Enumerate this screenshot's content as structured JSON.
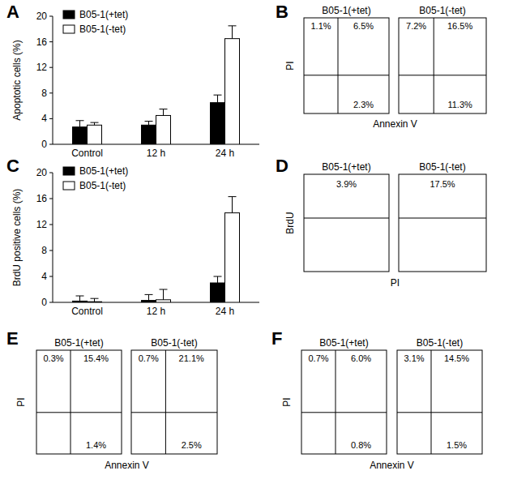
{
  "chart_data": [
    {
      "type": "bar",
      "title": "A",
      "y_label": "Apoptotic cells (%)",
      "categories": [
        "Control",
        "12 h",
        "24 h"
      ],
      "series": [
        {
          "name": "B05-1(+tet)",
          "color": "#000000",
          "values": [
            2.7,
            3.0,
            6.5
          ],
          "errors": [
            1.0,
            0.6,
            1.2
          ]
        },
        {
          "name": "B05-1(-tet)",
          "color": "#ffffff",
          "values": [
            3.0,
            4.5,
            16.5
          ],
          "errors": [
            0.4,
            1.0,
            2.0
          ]
        }
      ],
      "ylim": [
        0,
        20
      ],
      "yticks": [
        0,
        4,
        8,
        12,
        16,
        20
      ],
      "legend": "top-left"
    },
    {
      "type": "quadrant",
      "title": "B",
      "x_label": "Annexin V",
      "y_label": "PI",
      "data_labels": true,
      "plots": [
        {
          "name": "B05-1(+tet)",
          "values": [
            1.1,
            6.5,
            2.3
          ],
          "value_labels": [
            "1.1%",
            "6.5%",
            "2.3%"
          ]
        },
        {
          "name": "B05-1(-tet)",
          "values": [
            7.2,
            16.5,
            11.3
          ],
          "value_labels": [
            "7.2%",
            "16.5%",
            "11.3%"
          ]
        }
      ]
    },
    {
      "type": "bar",
      "title": "C",
      "y_label": "BrdU positive cells (%)",
      "categories": [
        "Control",
        "12 h",
        "24 h"
      ],
      "series": [
        {
          "name": "B05-1(+tet)",
          "color": "#000000",
          "values": [
            0.2,
            0.3,
            3.0
          ],
          "errors": [
            0.8,
            0.9,
            1.0
          ]
        },
        {
          "name": "B05-1(-tet)",
          "color": "#ffffff",
          "values": [
            0.1,
            0.4,
            13.8
          ],
          "errors": [
            0.5,
            1.6,
            2.5
          ]
        }
      ],
      "ylim": [
        0,
        20
      ],
      "yticks": [
        0,
        4,
        8,
        12,
        16,
        20
      ],
      "legend": "top-left"
    },
    {
      "type": "gate",
      "title": "D",
      "x_label": "PI",
      "y_label": "BrdU",
      "data_labels": true,
      "plots": [
        {
          "name": "B05-1(+tet)",
          "values": [
            3.9
          ],
          "value_labels": [
            "3.9%"
          ]
        },
        {
          "name": "B05-1(-tet)",
          "values": [
            17.5
          ],
          "value_labels": [
            "17.5%"
          ]
        }
      ]
    },
    {
      "type": "quadrant",
      "title": "E",
      "x_label": "Annexin V",
      "y_label": "PI",
      "data_labels": true,
      "plots": [
        {
          "name": "B05-1(+tet)",
          "values": [
            0.3,
            15.4,
            1.4
          ],
          "value_labels": [
            "0.3%",
            "15.4%",
            "1.4%"
          ]
        },
        {
          "name": "B05-1(-tet)",
          "values": [
            0.7,
            21.1,
            2.5
          ],
          "value_labels": [
            "0.7%",
            "21.1%",
            "2.5%"
          ]
        }
      ]
    },
    {
      "type": "quadrant",
      "title": "F",
      "x_label": "Annexin V",
      "y_label": "PI",
      "data_labels": true,
      "plots": [
        {
          "name": "B05-1(+tet)",
          "values": [
            0.7,
            6.0,
            0.8
          ],
          "value_labels": [
            "0.7%",
            "6.0%",
            "0.8%"
          ]
        },
        {
          "name": "B05-1(-tet)",
          "values": [
            3.1,
            14.5,
            1.5
          ],
          "value_labels": [
            "3.1%",
            "14.5%",
            "1.5%"
          ]
        }
      ]
    }
  ]
}
